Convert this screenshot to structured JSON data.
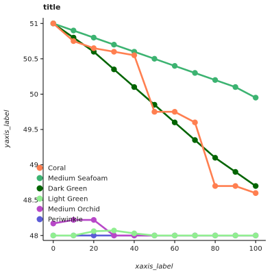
{
  "chart_data": {
    "type": "line",
    "title": "title",
    "xlabel": "xaxis_label",
    "ylabel": "yaxis_label",
    "xlim": [
      -5,
      105
    ],
    "ylim": [
      47.93,
      51.08
    ],
    "x_ticks": [
      0,
      20,
      40,
      60,
      80,
      100
    ],
    "y_ticks": [
      48,
      48.5,
      49,
      49.5,
      50,
      50.5,
      51
    ],
    "legend_position": "lower-left",
    "series": [
      {
        "name": "Periwinkle",
        "color": "#5B5BD6",
        "x": [
          0,
          10,
          20,
          30,
          40,
          50,
          60,
          70,
          80,
          90,
          100
        ],
        "y": [
          48,
          48,
          48,
          48,
          48,
          48,
          48,
          48,
          48,
          48,
          48
        ]
      },
      {
        "name": "Medium Orchid",
        "color": "#B848C8",
        "x": [
          0,
          10,
          20,
          30,
          40,
          50,
          60,
          70,
          80,
          90,
          100
        ],
        "y": [
          48.17,
          48.22,
          48.22,
          48.0,
          48.0,
          48.0,
          48.0,
          48.0,
          48.0,
          48.0,
          48.0
        ]
      },
      {
        "name": "Light Green",
        "color": "#90EE90",
        "x": [
          0,
          10,
          20,
          30,
          40,
          50,
          60,
          70,
          80,
          90,
          100
        ],
        "y": [
          48,
          48,
          48.06,
          48.07,
          48.03,
          48,
          48,
          48,
          48,
          48,
          48
        ]
      },
      {
        "name": "Dark Green",
        "color": "#006400",
        "x": [
          0,
          10,
          20,
          30,
          40,
          50,
          60,
          70,
          80,
          90,
          100
        ],
        "y": [
          51.0,
          50.8,
          50.6,
          50.35,
          50.1,
          49.85,
          49.6,
          49.35,
          49.1,
          48.9,
          48.7
        ]
      },
      {
        "name": "Medium Seafoam",
        "color": "#3CB371",
        "x": [
          0,
          10,
          20,
          30,
          40,
          50,
          60,
          70,
          80,
          90,
          100
        ],
        "y": [
          51.0,
          50.9,
          50.8,
          50.7,
          50.6,
          50.5,
          50.4,
          50.3,
          50.2,
          50.1,
          49.95
        ]
      },
      {
        "name": "Coral",
        "color": "#FF7F50",
        "x": [
          0,
          10,
          20,
          30,
          40,
          50,
          60,
          70,
          80,
          90,
          100
        ],
        "y": [
          51.0,
          50.75,
          50.65,
          50.6,
          50.55,
          49.75,
          49.75,
          49.6,
          48.7,
          48.7,
          48.6
        ]
      }
    ]
  }
}
